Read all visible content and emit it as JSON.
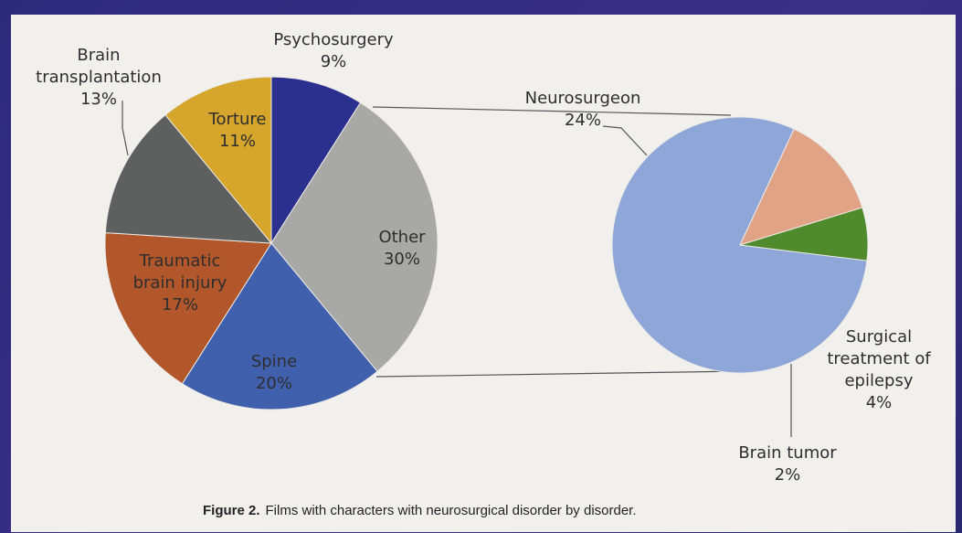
{
  "chart_data": [
    {
      "type": "pie",
      "categories": [
        "Psychosurgery",
        "Other",
        "Spine",
        "Traumatic brain injury",
        "Brain transplantation",
        "Torture"
      ],
      "values": [
        9,
        30,
        20,
        17,
        13,
        11
      ],
      "value_labels": [
        "9%",
        "30%",
        "20%",
        "17%",
        "13%",
        "11%"
      ],
      "colors": [
        "#2b2f8e",
        "#a8a8a6",
        "#4060ae",
        "#b1572b",
        "#5e5f5f",
        "#d5a52c"
      ]
    },
    {
      "type": "pie",
      "categories": [
        "Neurosurgeon",
        "Surgical treatment of epilepsy",
        "Brain tumor"
      ],
      "values": [
        24,
        4,
        2
      ],
      "value_labels": [
        "24%",
        "4%",
        "2%"
      ],
      "colors": [
        "#8fa7d8",
        "#e1a386",
        "#4f8a2c"
      ]
    }
  ],
  "caption": {
    "label": "Figure 2.",
    "text": "Films with characters with neurosurgical disorder by disorder."
  }
}
